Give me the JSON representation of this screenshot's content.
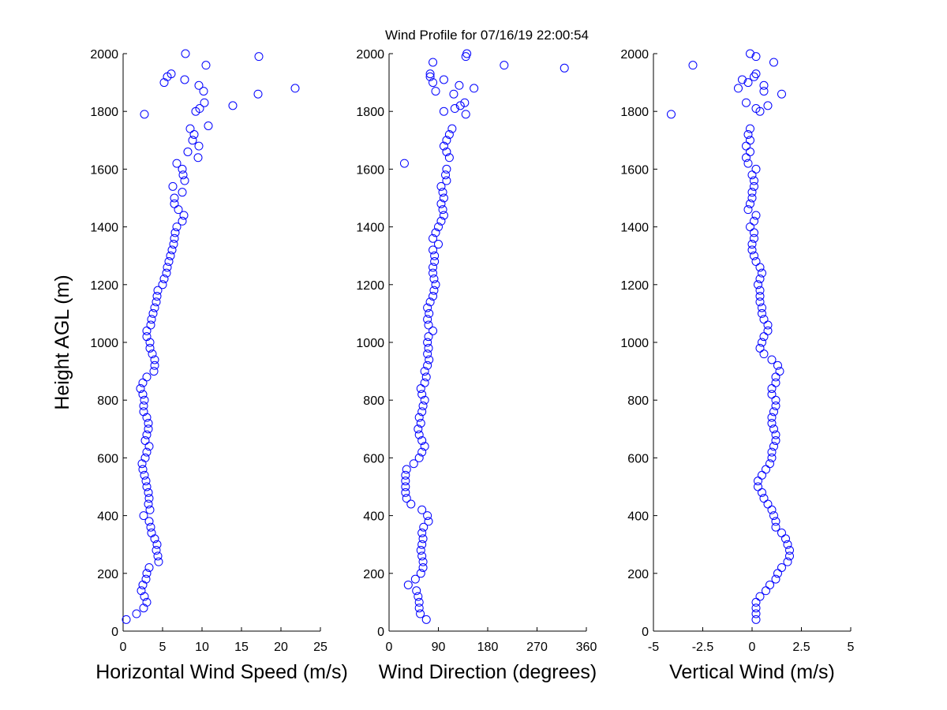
{
  "title": "Wind Profile for  07/16/19 22:00:54",
  "chart_data": [
    {
      "type": "scatter",
      "color": "#0000ff",
      "xlabel": "Horizontal Wind Speed (m/s)",
      "ylabel": "Height AGL (m)",
      "xlim": [
        0,
        25
      ],
      "xticks": [
        0,
        5,
        10,
        15,
        20,
        25
      ],
      "ylim": [
        0,
        2000
      ],
      "yticks": [
        0,
        200,
        400,
        600,
        800,
        1000,
        1200,
        1400,
        1600,
        1800,
        2000
      ],
      "x": [
        0.4,
        1.7,
        2.6,
        3.0,
        2.7,
        2.3,
        2.5,
        2.9,
        3.0,
        3.3,
        4.5,
        4.4,
        4.2,
        4.3,
        4.0,
        3.6,
        3.5,
        3.3,
        2.6,
        3.4,
        3.2,
        3.3,
        3.2,
        3.0,
        2.9,
        2.7,
        2.5,
        2.4,
        2.8,
        3.0,
        3.3,
        2.8,
        3.0,
        3.2,
        3.2,
        3.0,
        2.6,
        2.6,
        2.7,
        2.5,
        2.2,
        2.5,
        3.0,
        3.9,
        4.0,
        4.0,
        3.7,
        3.4,
        3.4,
        3.0,
        3.0,
        3.5,
        3.6,
        3.8,
        4.0,
        4.2,
        4.3,
        4.4,
        5.0,
        5.2,
        5.5,
        5.6,
        5.8,
        6.0,
        6.2,
        6.4,
        6.5,
        6.6,
        6.8,
        7.5,
        7.7,
        7.0,
        6.5,
        6.5,
        7.5,
        6.3,
        7.8,
        7.6,
        7.5,
        6.8,
        9.5,
        8.2,
        9.6,
        8.8,
        9.0,
        8.5,
        2.7,
        9.2,
        9.7,
        10.3,
        13.9,
        17.1,
        21.8,
        10.2,
        9.6,
        5.2,
        5.6,
        6.1,
        7.8,
        7.9,
        10.5,
        17.2,
        10.8
      ],
      "y": [
        40,
        60,
        80,
        100,
        120,
        140,
        160,
        180,
        200,
        220,
        240,
        260,
        280,
        300,
        320,
        340,
        360,
        380,
        400,
        420,
        440,
        460,
        480,
        500,
        520,
        540,
        560,
        580,
        600,
        620,
        640,
        660,
        680,
        700,
        720,
        740,
        760,
        780,
        800,
        820,
        840,
        860,
        880,
        900,
        920,
        940,
        960,
        980,
        1000,
        1020,
        1040,
        1060,
        1080,
        1100,
        1120,
        1140,
        1160,
        1180,
        1200,
        1220,
        1240,
        1260,
        1280,
        1300,
        1320,
        1340,
        1360,
        1380,
        1400,
        1420,
        1440,
        1460,
        1480,
        1500,
        1520,
        1540,
        1560,
        1580,
        1600,
        1620,
        1640,
        1660,
        1680,
        1700,
        1720,
        1740,
        1790,
        1800,
        1810,
        1830,
        1820,
        1860,
        1880,
        1870,
        1890,
        1900,
        1920,
        1930,
        1910,
        2000,
        1960,
        1990,
        1750
      ]
    },
    {
      "type": "scatter",
      "color": "#0000ff",
      "xlabel": "Wind Direction (degrees)",
      "xlim": [
        0,
        360
      ],
      "xticks": [
        0,
        90,
        180,
        270,
        360
      ],
      "ylim": [
        0,
        2000
      ],
      "yticks": [
        0,
        200,
        400,
        600,
        800,
        1000,
        1200,
        1400,
        1600,
        1800,
        2000
      ],
      "x": [
        68,
        57,
        55,
        55,
        53,
        50,
        35,
        48,
        58,
        62,
        62,
        60,
        58,
        60,
        62,
        60,
        63,
        72,
        70,
        60,
        40,
        32,
        30,
        30,
        30,
        30,
        32,
        45,
        55,
        60,
        65,
        60,
        55,
        53,
        58,
        55,
        60,
        62,
        65,
        60,
        58,
        65,
        68,
        65,
        70,
        73,
        70,
        72,
        70,
        72,
        80,
        72,
        70,
        73,
        70,
        75,
        80,
        82,
        85,
        82,
        80,
        80,
        83,
        83,
        80,
        90,
        80,
        85,
        90,
        95,
        100,
        98,
        95,
        100,
        98,
        95,
        105,
        103,
        105,
        28,
        110,
        105,
        100,
        105,
        110,
        115,
        140,
        100,
        120,
        130,
        138,
        118,
        85,
        155,
        128,
        80,
        100,
        75,
        75,
        210,
        320,
        80,
        140,
        142
      ],
      "y": [
        40,
        60,
        80,
        100,
        120,
        140,
        160,
        180,
        200,
        220,
        240,
        260,
        280,
        300,
        320,
        340,
        360,
        380,
        400,
        420,
        440,
        460,
        480,
        500,
        520,
        540,
        560,
        580,
        600,
        620,
        640,
        660,
        680,
        700,
        720,
        740,
        760,
        780,
        800,
        820,
        840,
        860,
        880,
        900,
        920,
        940,
        960,
        980,
        1000,
        1020,
        1040,
        1060,
        1080,
        1100,
        1120,
        1140,
        1160,
        1180,
        1200,
        1220,
        1240,
        1260,
        1280,
        1300,
        1320,
        1340,
        1360,
        1380,
        1400,
        1420,
        1440,
        1460,
        1480,
        1500,
        1520,
        1540,
        1560,
        1580,
        1600,
        1620,
        1640,
        1660,
        1680,
        1700,
        1720,
        1740,
        1790,
        1800,
        1810,
        1820,
        1830,
        1860,
        1870,
        1880,
        1890,
        1900,
        1910,
        1920,
        1930,
        1960,
        1950,
        1970,
        1990,
        2000
      ]
    },
    {
      "type": "scatter",
      "color": "#0000ff",
      "xlabel": "Vertical Wind (m/s)",
      "xlim": [
        -5,
        5
      ],
      "xticks": [
        -5,
        -2.5,
        0,
        2.5,
        5
      ],
      "ylim": [
        0,
        2000
      ],
      "yticks": [
        0,
        200,
        400,
        600,
        800,
        1000,
        1200,
        1400,
        1600,
        1800,
        2000
      ],
      "x": [
        0.2,
        0.2,
        0.2,
        0.2,
        0.4,
        0.7,
        0.9,
        1.2,
        1.3,
        1.5,
        1.8,
        1.9,
        1.9,
        1.8,
        1.7,
        1.5,
        1.2,
        1.2,
        1.1,
        1.0,
        0.8,
        0.6,
        0.5,
        0.3,
        0.3,
        0.5,
        0.7,
        0.9,
        1.0,
        1.0,
        1.1,
        1.2,
        1.2,
        1.1,
        1.0,
        1.0,
        1.1,
        1.2,
        1.2,
        1.0,
        1.0,
        1.2,
        1.2,
        1.4,
        1.3,
        1.0,
        0.6,
        0.4,
        0.5,
        0.6,
        0.8,
        0.8,
        0.6,
        0.5,
        0.5,
        0.4,
        0.4,
        0.4,
        0.3,
        0.4,
        0.5,
        0.4,
        0.2,
        0.1,
        0.0,
        0.0,
        0.1,
        0.1,
        -0.1,
        0.1,
        0.2,
        -0.2,
        -0.1,
        0.0,
        0.0,
        0.1,
        0.1,
        0.0,
        0.2,
        -0.2,
        -0.3,
        -0.1,
        -0.3,
        -0.1,
        -0.2,
        -0.1,
        -4.1,
        0.4,
        -0.3,
        0.8,
        0.2,
        1.5,
        0.6,
        -0.7,
        0.6,
        -0.2,
        -0.5,
        0.1,
        0.2,
        -3.0,
        1.1,
        0.2,
        -0.1
      ],
      "y": [
        40,
        60,
        80,
        100,
        120,
        140,
        160,
        180,
        200,
        220,
        240,
        260,
        280,
        300,
        320,
        340,
        360,
        380,
        400,
        420,
        440,
        460,
        480,
        500,
        520,
        540,
        560,
        580,
        600,
        620,
        640,
        660,
        680,
        700,
        720,
        740,
        760,
        780,
        800,
        820,
        840,
        860,
        880,
        900,
        920,
        940,
        960,
        980,
        1000,
        1020,
        1040,
        1060,
        1080,
        1100,
        1120,
        1140,
        1160,
        1180,
        1200,
        1220,
        1240,
        1260,
        1280,
        1300,
        1320,
        1340,
        1360,
        1380,
        1400,
        1420,
        1440,
        1460,
        1480,
        1500,
        1520,
        1540,
        1560,
        1580,
        1600,
        1620,
        1640,
        1660,
        1680,
        1700,
        1720,
        1740,
        1790,
        1800,
        1830,
        1820,
        1810,
        1860,
        1870,
        1880,
        1890,
        1900,
        1910,
        1920,
        1930,
        1960,
        1970,
        1990,
        2000
      ]
    }
  ]
}
